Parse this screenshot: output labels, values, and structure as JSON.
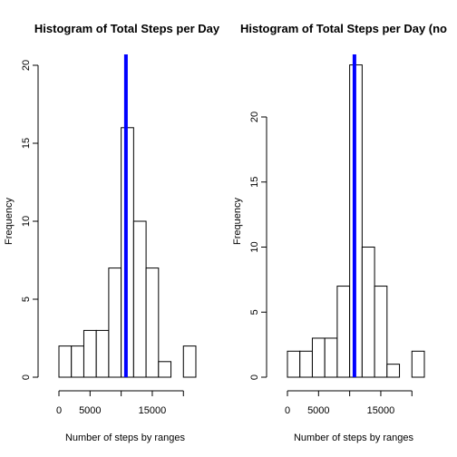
{
  "colors": {
    "mean_line": "#0000ff",
    "bar_fill": "#ffffff",
    "bar_stroke": "#000000"
  },
  "chart_data": [
    {
      "type": "bar",
      "subtype": "histogram",
      "title": "Histogram of Total Steps per Day",
      "xlabel": "Number of steps by ranges",
      "ylabel": "Frequency",
      "bin_edges": [
        0,
        2000,
        4000,
        6000,
        8000,
        10000,
        12000,
        14000,
        16000,
        18000,
        20000,
        22000
      ],
      "values": [
        2,
        2,
        3,
        3,
        7,
        16,
        10,
        7,
        1,
        0,
        2
      ],
      "x_ticks": [
        0,
        5000,
        15000
      ],
      "x_tick_labels": [
        "0",
        "5000",
        "15000"
      ],
      "x_axis_range": [
        0,
        20000
      ],
      "y_ticks": [
        0,
        5,
        10,
        15,
        20
      ],
      "y_tick_labels": [
        "0",
        "5",
        "10",
        "15",
        "20"
      ],
      "ylim": [
        0,
        20
      ],
      "mean_line_x": 10766,
      "grid": false
    },
    {
      "type": "bar",
      "subtype": "histogram",
      "title": "Histogram of Total Steps per Day (no",
      "xlabel": "Number of steps by ranges",
      "ylabel": "Frequency",
      "bin_edges": [
        0,
        2000,
        4000,
        6000,
        8000,
        10000,
        12000,
        14000,
        16000,
        18000,
        20000,
        22000
      ],
      "values": [
        2,
        2,
        3,
        3,
        7,
        24,
        10,
        7,
        1,
        0,
        2
      ],
      "x_ticks": [
        0,
        5000,
        15000
      ],
      "x_tick_labels": [
        "0",
        "5000",
        "15000"
      ],
      "x_axis_range": [
        0,
        20000
      ],
      "y_ticks": [
        0,
        5,
        10,
        15,
        20
      ],
      "y_tick_labels": [
        "0",
        "5",
        "10",
        "15",
        "20"
      ],
      "ylim": [
        0,
        20
      ],
      "mean_line_x": 10766,
      "grid": false
    }
  ]
}
